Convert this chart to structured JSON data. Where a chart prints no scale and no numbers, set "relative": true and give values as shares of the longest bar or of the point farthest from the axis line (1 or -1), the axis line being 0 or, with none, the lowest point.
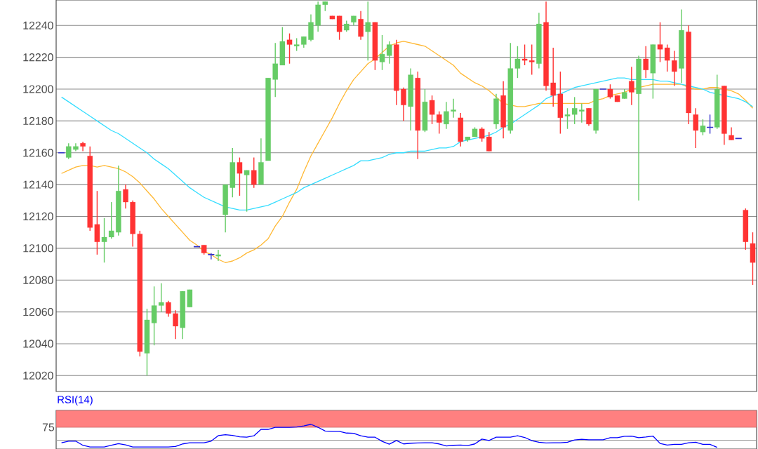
{
  "chart_data": [
    {
      "type": "candlestick",
      "categories": [
        null,
        null,
        null,
        null,
        null,
        null,
        null,
        null,
        null,
        null,
        null,
        null,
        null,
        null,
        null,
        null,
        null,
        null,
        null,
        null,
        null,
        null,
        null,
        null,
        null,
        null,
        null,
        null,
        null,
        null,
        null,
        null,
        null,
        null,
        null,
        null,
        null,
        null,
        null,
        null,
        null,
        null,
        null,
        null,
        null,
        null,
        null,
        null,
        null,
        null,
        null,
        null,
        null,
        null,
        null,
        null,
        null,
        null,
        null,
        null,
        null,
        null,
        null,
        null,
        null,
        null,
        null,
        null,
        null,
        null,
        null,
        null,
        null,
        null,
        null,
        null,
        null,
        null,
        null,
        null,
        null,
        null,
        null,
        null,
        null,
        null,
        null,
        null,
        null,
        null,
        null,
        null,
        null,
        null,
        null,
        null,
        null,
        null
      ],
      "ohlc": [
        [
          12160,
          12160,
          12160,
          12160
        ],
        [
          12157,
          12166,
          12156,
          12164
        ],
        [
          12162,
          12166,
          12161,
          12164
        ],
        [
          12166,
          12167,
          12161,
          12164
        ],
        [
          12158,
          12164,
          12111,
          12113
        ],
        [
          12115,
          12136,
          12096,
          12104
        ],
        [
          12104,
          12119,
          12091,
          12107
        ],
        [
          12107,
          12129,
          12106,
          12111
        ],
        [
          12110,
          12152,
          12108,
          12136
        ],
        [
          12137,
          12140,
          12125,
          12129
        ],
        [
          12129,
          12130,
          12101,
          12109
        ],
        [
          12109,
          12111,
          12032,
          12035
        ],
        [
          12034,
          12062,
          12020,
          12055
        ],
        [
          12053,
          12076,
          12039,
          12064
        ],
        [
          12064,
          12078,
          12060,
          12066
        ],
        [
          12066,
          12067,
          12057,
          12059
        ],
        [
          12059,
          12061,
          12043,
          12051
        ],
        [
          12050,
          12073,
          12043,
          12073
        ],
        [
          12063,
          12074,
          12063,
          12074
        ],
        [
          12101,
          12101,
          12101,
          12101
        ],
        [
          12102,
          12102,
          12096,
          12097
        ],
        [
          12096,
          12097,
          12093,
          12096
        ],
        [
          12095,
          12099,
          12092,
          12096
        ],
        [
          12121,
          12140,
          12110,
          12140
        ],
        [
          12138,
          12163,
          12132,
          12154
        ],
        [
          12154,
          12157,
          12133,
          12147
        ],
        [
          12146,
          12149,
          12123,
          12149
        ],
        [
          12149,
          12157,
          12138,
          12140
        ],
        [
          12140,
          12169,
          12140,
          12154
        ],
        [
          12155,
          12207,
          12155,
          12207
        ],
        [
          12206,
          12229,
          12195,
          12216
        ],
        [
          12215,
          12239,
          12215,
          12230
        ],
        [
          12231,
          12235,
          12216,
          12228
        ],
        [
          12227,
          12232,
          12224,
          12228
        ],
        [
          12228,
          12233,
          12226,
          12233
        ],
        [
          12231,
          12247,
          12230,
          12242
        ],
        [
          12240,
          12255,
          12236,
          12253
        ],
        [
          12253,
          12255,
          12249,
          12255
        ],
        [
          12246,
          12246,
          12244,
          12244
        ],
        [
          12246,
          12246,
          12231,
          12236
        ],
        [
          12237,
          12243,
          12236,
          12241
        ],
        [
          12242,
          12246,
          12240,
          12246
        ],
        [
          12244,
          12249,
          12231,
          12233
        ],
        [
          12236,
          12255,
          12218,
          12242
        ],
        [
          12242,
          12242,
          12212,
          12218
        ],
        [
          12217,
          12234,
          12212,
          12222
        ],
        [
          12221,
          12230,
          12216,
          12228
        ],
        [
          12228,
          12231,
          12190,
          12199
        ],
        [
          12200,
          12201,
          12180,
          12190
        ],
        [
          12189,
          12213,
          12174,
          12209
        ],
        [
          12207,
          12211,
          12156,
          12174
        ],
        [
          12174,
          12200,
          12173,
          12192
        ],
        [
          12193,
          12196,
          12178,
          12184
        ],
        [
          12184,
          12186,
          12172,
          12179
        ],
        [
          12178,
          12192,
          12175,
          12186
        ],
        [
          12186,
          12194,
          12182,
          12187
        ],
        [
          12182,
          12185,
          12164,
          12167
        ],
        [
          12168,
          12170,
          12167,
          12170
        ],
        [
          12170,
          12176,
          12170,
          12175
        ],
        [
          12175,
          12176,
          12167,
          12169
        ],
        [
          12170,
          12173,
          12161,
          12161
        ],
        [
          12178,
          12197,
          12175,
          12194
        ],
        [
          12196,
          12205,
          12169,
          12176
        ],
        [
          12174,
          12229,
          12172,
          12213
        ],
        [
          12213,
          12227,
          12207,
          12219
        ],
        [
          12219,
          12228,
          12215,
          12218
        ],
        [
          12218,
          12228,
          12209,
          12217
        ],
        [
          12216,
          12248,
          12213,
          12241
        ],
        [
          12242,
          12255,
          12199,
          12202
        ],
        [
          12204,
          12226,
          12189,
          12196
        ],
        [
          12197,
          12211,
          12172,
          12182
        ],
        [
          12183,
          12188,
          12175,
          12184
        ],
        [
          12184,
          12195,
          12178,
          12188
        ],
        [
          12186,
          12191,
          12179,
          12187
        ],
        [
          12188,
          12188,
          12177,
          12178
        ],
        [
          12174,
          12200,
          12172,
          12200
        ],
        [
          12200,
          12200,
          12200,
          12200
        ],
        [
          12200,
          12203,
          12194,
          12195
        ],
        [
          12196,
          12196,
          12192,
          12192
        ],
        [
          12194,
          12200,
          12194,
          12198
        ],
        [
          12205,
          12214,
          12190,
          12198
        ],
        [
          12197,
          12221,
          12130,
          12219
        ],
        [
          12219,
          12227,
          12207,
          12212
        ],
        [
          12210,
          12228,
          12194,
          12228
        ],
        [
          12228,
          12242,
          12217,
          12225
        ],
        [
          12226,
          12228,
          12211,
          12218
        ],
        [
          12218,
          12224,
          12202,
          12211
        ],
        [
          12213,
          12250,
          12204,
          12237
        ],
        [
          12236,
          12240,
          12178,
          12185
        ],
        [
          12184,
          12188,
          12163,
          12174
        ],
        [
          12173,
          12181,
          12171,
          12177
        ],
        [
          12176,
          12184,
          12172,
          12176
        ],
        [
          12176,
          12209,
          12175,
          12200
        ],
        [
          12202,
          12202,
          12165,
          12172
        ],
        [
          12171,
          12176,
          12168,
          12168
        ],
        [
          12169,
          12169,
          12169,
          12169
        ],
        [
          12124,
          12125,
          12099,
          12104
        ],
        [
          12103,
          12110,
          12077,
          12091
        ]
      ],
      "series": [
        {
          "type": "line",
          "color": "#ffb833",
          "values": [
            12147,
            12149,
            12151,
            12152,
            12152,
            12151,
            12152,
            12151,
            12150,
            12148,
            12145,
            12141,
            12136,
            12131,
            12125,
            12120,
            12115,
            12110,
            12105,
            12102,
            12098,
            12096,
            12093,
            12091,
            12092,
            12094,
            12097,
            12099,
            12102,
            12106,
            12114,
            12120,
            12129,
            12137,
            12148,
            12158,
            12166,
            12174,
            12182,
            12191,
            12199,
            12206,
            12211,
            12216,
            12219,
            12223,
            12227,
            12229,
            12230,
            12229,
            12228,
            12227,
            12224,
            12221,
            12218,
            12215,
            12210,
            12207,
            12204,
            12202,
            12199,
            12195,
            12191,
            12190,
            12189,
            12189,
            12190,
            12191,
            12191,
            12191,
            12191,
            12191,
            12191,
            12191,
            12191,
            12193,
            12194,
            12196,
            12197,
            12198,
            12200,
            null,
            12202,
            12203,
            12203,
            12203,
            12203,
            12203,
            12201,
            12200,
            12200,
            12201,
            12201,
            12200,
            12199,
            12197,
            12193,
            12188
          ]
        },
        {
          "type": "line",
          "color": "#33ddff",
          "values": [
            12195,
            12192,
            12189,
            12186,
            12183,
            12180,
            12177,
            12174,
            12172,
            12169,
            12166,
            12163,
            12160,
            12156,
            12153,
            12150,
            12146,
            12142,
            12138,
            12135,
            12132,
            12130,
            12128,
            12126,
            12125,
            12124,
            12124,
            12125,
            12126,
            12127,
            12129,
            12131,
            12133,
            12135,
            12138,
            12140,
            12142,
            12144,
            12146,
            12148,
            12150,
            12152,
            12155,
            12155,
            12156,
            12157,
            12159,
            12160,
            12160,
            12161,
            12161,
            12161,
            12162,
            12163,
            12163,
            12164,
            12167,
            12168,
            12169,
            12170,
            12171,
            12173,
            12176,
            12178,
            12181,
            12184,
            12187,
            12190,
            12194,
            12196,
            12197,
            12199,
            12201,
            12202,
            12203,
            12204,
            12205,
            12206,
            12207,
            12207,
            12206,
            null,
            12206,
            12206,
            12205,
            12205,
            12204,
            12203,
            null,
            12201,
            12200,
            12198,
            12197,
            null,
            12195,
            12194,
            12192,
            12189
          ]
        }
      ],
      "ylim": [
        12010,
        12256
      ],
      "yticks": [
        12020,
        12040,
        12060,
        12080,
        12100,
        12120,
        12140,
        12160,
        12180,
        12200,
        12220,
        12240
      ],
      "grid": "y",
      "tick_labels": "y"
    },
    {
      "type": "line",
      "title": "RSI(14)",
      "relative": true,
      "categories": [
        null,
        null,
        null,
        null,
        null,
        null,
        null,
        null,
        null,
        null,
        null,
        null,
        null,
        null,
        null,
        null,
        null,
        null,
        null,
        null,
        null,
        null,
        null,
        null,
        null,
        null,
        null,
        null,
        null,
        null,
        null,
        null,
        null,
        null,
        null,
        null,
        null,
        null,
        null,
        null,
        null,
        null,
        null,
        null,
        null,
        null,
        null,
        null,
        null,
        null,
        null,
        null,
        null,
        null,
        null,
        null,
        null,
        null,
        null,
        null,
        null,
        null,
        null,
        null,
        null,
        null,
        null,
        null,
        null,
        null,
        null,
        null,
        null,
        null,
        null,
        null,
        null,
        null,
        null,
        null,
        null,
        null,
        null,
        null,
        null,
        null,
        null,
        null,
        null,
        null,
        null,
        null,
        null,
        null,
        null,
        null,
        null,
        null
      ],
      "series": [
        {
          "color": "#0000ff",
          "values": [
            0.2,
            0.27,
            0.27,
            0.09,
            0.02,
            0.02,
            0.02,
            0.09,
            0.16,
            0.11,
            0.02,
            0.02,
            0.02,
            0.02,
            0.02,
            0.02,
            0.04,
            0.15,
            0.2,
            0.2,
            0.2,
            0.27,
            0.51,
            0.55,
            0.52,
            0.46,
            0.44,
            0.5,
            0.78,
            0.78,
            0.87,
            0.87,
            0.87,
            0.88,
            0.93,
            1,
            0.87,
            0.71,
            0.69,
            0.69,
            0.62,
            0.61,
            0.5,
            0.44,
            0.44,
            0.26,
            0.14,
            0.3,
            0.15,
            0.18,
            0.19,
            0.2,
            0.2,
            0.15,
            0.06,
            0.09,
            0.1,
            0.08,
            0.15,
            0.36,
            0.3,
            0.44,
            0.44,
            0.44,
            0.5,
            0.43,
            0.29,
            0.22,
            0.19,
            0.2,
            0.2,
            0.22,
            0.32,
            0.35,
            0.33,
            0.33,
            0.33,
            0.42,
            0.42,
            0.48,
            0.49,
            0.42,
            0.45,
            0.49,
            0.17,
            0.1,
            0.13,
            0.13,
            0.2,
            0.22,
            0.13,
            0.13,
            0,
            null,
            null,
            null,
            null,
            null
          ]
        }
      ],
      "bands": [
        {
          "axis": "y",
          "from": 0.87,
          "to": 1.6,
          "label": "75",
          "color": "#ff8080"
        }
      ],
      "ref_lines": [
        {
          "axis": "y",
          "value": 0.31,
          "color": "#999999"
        }
      ]
    }
  ]
}
